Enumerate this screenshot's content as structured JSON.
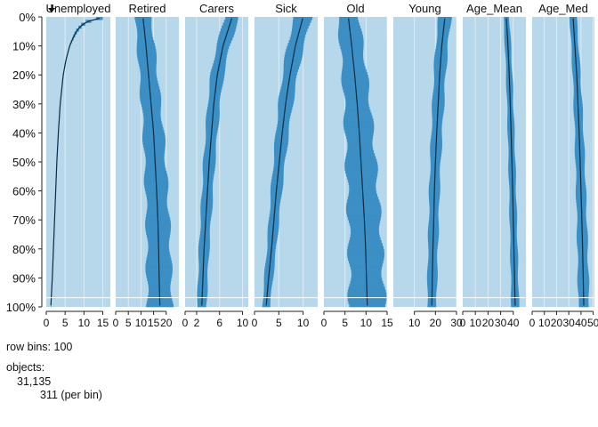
{
  "chart_data": {
    "type": "tableplot",
    "y_axis": {
      "ticks": [
        "0%",
        "10%",
        "20%",
        "30%",
        "40%",
        "50%",
        "60%",
        "70%",
        "80%",
        "90%",
        "100%"
      ],
      "sorted_by": "Unemployed"
    },
    "row_bins": 100,
    "colors": {
      "range_fill": "#b7d8ea",
      "box_fill": "#3b8fc4",
      "mean_line": "#0b2d45",
      "panel_bg": "#efefef",
      "grid": "#ffffff"
    },
    "series": [
      {
        "name": "Unemployed",
        "xlim": [
          0,
          17
        ],
        "ticks": [
          0,
          5,
          10,
          15
        ],
        "range_max": 17,
        "mean": [
          [
            0,
            16.1
          ],
          [
            1,
            12.1
          ],
          [
            2,
            10.3
          ],
          [
            3,
            9.3
          ],
          [
            4,
            8.6
          ],
          [
            5,
            8.0
          ],
          [
            7,
            7.2
          ],
          [
            10,
            6.2
          ],
          [
            15,
            5.2
          ],
          [
            20,
            4.5
          ],
          [
            30,
            3.7
          ],
          [
            40,
            3.2
          ],
          [
            50,
            2.8
          ],
          [
            60,
            2.5
          ],
          [
            70,
            2.2
          ],
          [
            80,
            1.9
          ],
          [
            90,
            1.6
          ],
          [
            100,
            1.2
          ]
        ],
        "box_halfwidth": [
          [
            0,
            1.0
          ],
          [
            3,
            0.4
          ],
          [
            10,
            0.1
          ],
          [
            100,
            0.05
          ]
        ]
      },
      {
        "name": "Retired",
        "xlim": [
          0,
          25
        ],
        "ticks": [
          0,
          5,
          10,
          15,
          20
        ],
        "range_max": 25,
        "mean": [
          [
            0,
            10.8
          ],
          [
            10,
            12.0
          ],
          [
            20,
            13.0
          ],
          [
            30,
            14.0
          ],
          [
            40,
            15.0
          ],
          [
            50,
            15.6
          ],
          [
            60,
            16.2
          ],
          [
            70,
            16.7
          ],
          [
            80,
            17.0
          ],
          [
            90,
            17.2
          ],
          [
            100,
            17.5
          ]
        ],
        "box_halfwidth": [
          [
            0,
            3.2
          ],
          [
            50,
            4.2
          ],
          [
            100,
            5.0
          ]
        ]
      },
      {
        "name": "Carers",
        "xlim": [
          0,
          11
        ],
        "ticks": [
          0,
          2,
          6,
          10
        ],
        "range_max": 11,
        "mean": [
          [
            0,
            8.2
          ],
          [
            10,
            6.6
          ],
          [
            20,
            5.6
          ],
          [
            30,
            5.0
          ],
          [
            40,
            4.6
          ],
          [
            50,
            4.2
          ],
          [
            60,
            3.9
          ],
          [
            70,
            3.6
          ],
          [
            80,
            3.3
          ],
          [
            90,
            3.1
          ],
          [
            100,
            2.9
          ]
        ],
        "box_halfwidth": [
          [
            0,
            1.2
          ],
          [
            50,
            1.0
          ],
          [
            100,
            0.8
          ]
        ]
      },
      {
        "name": "Sick",
        "xlim": [
          0,
          13
        ],
        "ticks": [
          0,
          5,
          10
        ],
        "range_max": 13,
        "mean": [
          [
            0,
            10.0
          ],
          [
            10,
            8.4
          ],
          [
            20,
            7.3
          ],
          [
            30,
            6.4
          ],
          [
            40,
            5.7
          ],
          [
            50,
            5.1
          ],
          [
            60,
            4.5
          ],
          [
            70,
            4.0
          ],
          [
            80,
            3.5
          ],
          [
            90,
            2.9
          ],
          [
            100,
            2.4
          ]
        ],
        "box_halfwidth": [
          [
            0,
            1.8
          ],
          [
            50,
            1.2
          ],
          [
            100,
            0.8
          ]
        ]
      },
      {
        "name": "Old",
        "xlim": [
          0,
          15
        ],
        "ticks": [
          0,
          5,
          10,
          15
        ],
        "range_max": 15,
        "mean": [
          [
            0,
            5.8
          ],
          [
            10,
            6.6
          ],
          [
            20,
            7.3
          ],
          [
            30,
            7.9
          ],
          [
            40,
            8.4
          ],
          [
            50,
            8.8
          ],
          [
            60,
            9.2
          ],
          [
            70,
            9.6
          ],
          [
            80,
            9.9
          ],
          [
            90,
            10.1
          ],
          [
            100,
            10.3
          ]
        ],
        "box_halfwidth": [
          [
            0,
            2.5
          ],
          [
            50,
            3.5
          ],
          [
            100,
            4.2
          ]
        ]
      },
      {
        "name": "Young",
        "xlim": [
          0,
          30
        ],
        "ticks": [
          10,
          20,
          30
        ],
        "range_max": 30,
        "mean": [
          [
            0,
            24.5
          ],
          [
            10,
            23.0
          ],
          [
            20,
            22.0
          ],
          [
            30,
            21.3
          ],
          [
            40,
            20.6
          ],
          [
            50,
            20.0
          ],
          [
            60,
            19.5
          ],
          [
            70,
            19.2
          ],
          [
            80,
            18.8
          ],
          [
            90,
            18.5
          ],
          [
            100,
            18.3
          ]
        ],
        "box_halfwidth": [
          [
            0,
            3.0
          ],
          [
            50,
            2.5
          ],
          [
            100,
            2.2
          ]
        ]
      },
      {
        "name": "Age_Mean",
        "xlim": [
          0,
          50
        ],
        "ticks": [
          0,
          10,
          20,
          30,
          40
        ],
        "range_max": 50,
        "mean": [
          [
            0,
            34.5
          ],
          [
            10,
            35.8
          ],
          [
            20,
            36.8
          ],
          [
            30,
            37.6
          ],
          [
            40,
            38.3
          ],
          [
            50,
            38.9
          ],
          [
            60,
            39.5
          ],
          [
            70,
            40.0
          ],
          [
            80,
            40.5
          ],
          [
            90,
            41.0
          ],
          [
            100,
            41.5
          ]
        ],
        "box_halfwidth": [
          [
            0,
            2.3
          ],
          [
            50,
            2.7
          ],
          [
            100,
            3.0
          ]
        ]
      },
      {
        "name": "Age_Med",
        "xlim": [
          0,
          51
        ],
        "ticks": [
          0,
          10,
          20,
          30,
          40,
          50
        ],
        "range_max": 51,
        "mean": [
          [
            0,
            33.5
          ],
          [
            10,
            35.0
          ],
          [
            20,
            36.5
          ],
          [
            30,
            37.5
          ],
          [
            40,
            38.5
          ],
          [
            50,
            39.3
          ],
          [
            60,
            40.0
          ],
          [
            70,
            40.7
          ],
          [
            80,
            41.3
          ],
          [
            90,
            41.8
          ],
          [
            100,
            42.3
          ]
        ],
        "box_halfwidth": [
          [
            0,
            2.8
          ],
          [
            50,
            3.8
          ],
          [
            100,
            4.5
          ]
        ]
      }
    ]
  },
  "footer": {
    "row_bins_text": "row bins: 100",
    "objects_label": "objects:",
    "objects_count": "31,135",
    "per_bin": "311 (per bin)"
  }
}
